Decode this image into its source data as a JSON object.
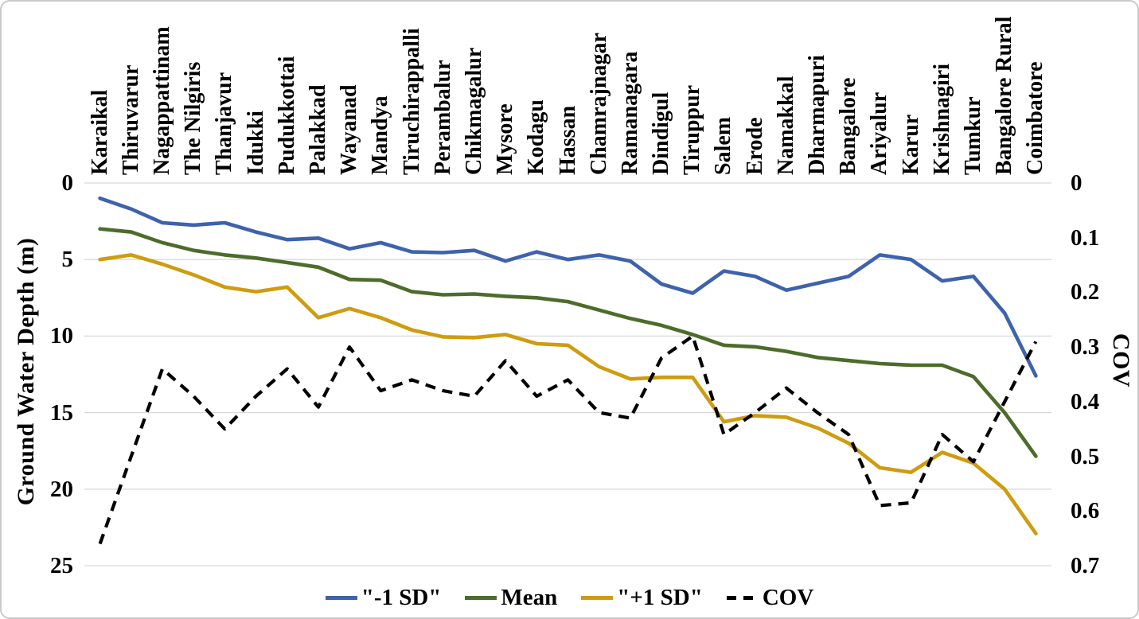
{
  "chart_data": {
    "type": "line",
    "categories": [
      "Karaikal",
      "Thiruvarur",
      "Nagappattinam",
      "The Nilgiris",
      "Thanjavur",
      "Idukki",
      "Pudukkottai",
      "Palakkad",
      "Wayanad",
      "Mandya",
      "Tiruchirappalli",
      "Perambalur",
      "Chikmagalur",
      "Mysore",
      "Kodagu",
      "Hassan",
      "Chamrajnagar",
      "Ramanagara",
      "Dindigul",
      "Tiruppur",
      "Salem",
      "Erode",
      "Namakkal",
      "Dharmapuri",
      "Bangalore",
      "Ariyalur",
      "Karur",
      "Krishnagiri",
      "Tumkur",
      "Bangalore Rural",
      "Coimbatore"
    ],
    "series": [
      {
        "name": "\"-1 SD\"",
        "axis": "left",
        "color": "#3E62AC",
        "style": "solid",
        "values": [
          1.0,
          1.7,
          2.6,
          2.75,
          2.6,
          3.2,
          3.7,
          3.6,
          4.3,
          3.9,
          4.5,
          4.55,
          4.4,
          5.1,
          4.5,
          5.0,
          4.7,
          5.1,
          6.6,
          7.2,
          5.75,
          6.1,
          7.0,
          6.55,
          6.1,
          4.7,
          5.0,
          6.4,
          6.1,
          8.5,
          12.6
        ]
      },
      {
        "name": "Mean",
        "axis": "left",
        "color": "#4D6C2B",
        "style": "solid",
        "values": [
          3.0,
          3.2,
          3.9,
          4.4,
          4.7,
          4.9,
          5.2,
          5.5,
          6.3,
          6.35,
          7.1,
          7.3,
          7.25,
          7.4,
          7.5,
          7.75,
          8.3,
          8.85,
          9.3,
          9.9,
          10.6,
          10.7,
          11.0,
          11.4,
          11.6,
          11.8,
          11.9,
          11.9,
          12.65,
          15.0,
          17.85
        ]
      },
      {
        "name": "\"+1 SD\"",
        "axis": "left",
        "color": "#CE9C10",
        "style": "solid",
        "values": [
          5.0,
          4.7,
          5.3,
          6.0,
          6.8,
          7.1,
          6.8,
          8.8,
          8.2,
          8.8,
          9.6,
          10.05,
          10.1,
          9.9,
          10.5,
          10.6,
          12.0,
          12.8,
          12.7,
          12.7,
          15.6,
          15.2,
          15.3,
          16.0,
          17.0,
          18.6,
          18.9,
          17.6,
          18.3,
          20.0,
          22.9
        ]
      },
      {
        "name": "COV",
        "axis": "right",
        "color": "#000000",
        "style": "dashed",
        "values": [
          0.66,
          0.5,
          0.34,
          0.39,
          0.45,
          0.39,
          0.34,
          0.41,
          0.3,
          0.38,
          0.36,
          0.38,
          0.39,
          0.325,
          0.39,
          0.36,
          0.42,
          0.43,
          0.32,
          0.28,
          0.46,
          0.42,
          0.375,
          0.42,
          0.46,
          0.59,
          0.585,
          0.46,
          0.51,
          0.4,
          0.29
        ]
      }
    ],
    "left_axis": {
      "label": "Ground Water Depth (m)",
      "min": 0,
      "max": 25,
      "ticks": [
        "0",
        "5",
        "10",
        "15",
        "20",
        "25"
      ]
    },
    "right_axis": {
      "label": "COV",
      "min": 0,
      "max": 0.7,
      "ticks": [
        "0",
        "0.1",
        "0.2",
        "0.3",
        "0.4",
        "0.5",
        "0.6",
        "0.7"
      ]
    },
    "grid": {
      "on": true,
      "color": "#D9D9D9"
    },
    "legend_position": "bottom",
    "background": "#FFFFFF"
  }
}
